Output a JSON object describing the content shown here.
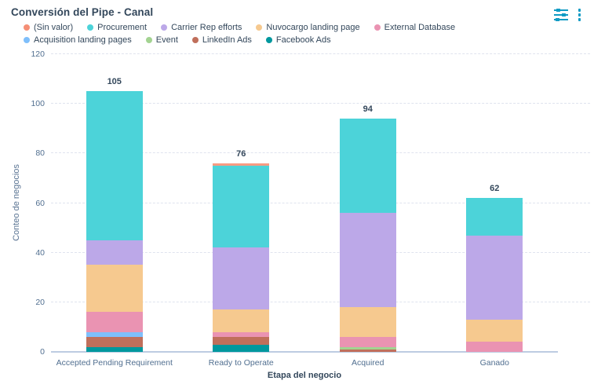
{
  "header": {
    "title": "Conversión del Pipe - Canal"
  },
  "icons": {
    "settings": "chart-settings-sliders",
    "menu": "kebab-menu",
    "accent_color": "#119bc4"
  },
  "legend": [
    {
      "label": "(Sin valor)",
      "color": "#f58f76"
    },
    {
      "label": "Procurement",
      "color": "#4cd3d9"
    },
    {
      "label": "Carrier Rep efforts",
      "color": "#bca8e8"
    },
    {
      "label": "Nuvocargo landing page",
      "color": "#f6c98f"
    },
    {
      "label": "External Database",
      "color": "#ea93b2"
    },
    {
      "label": "Acquisition landing pages",
      "color": "#7fbffb"
    },
    {
      "label": "Event",
      "color": "#a3d391"
    },
    {
      "label": "LinkedIn Ads",
      "color": "#c06f5b"
    },
    {
      "label": "Facebook Ads",
      "color": "#00989e"
    }
  ],
  "chart_data": {
    "type": "bar",
    "stacked": true,
    "title": "Conversión del Pipe - Canal",
    "categories": [
      "Accepted Pending Requirement",
      "Ready to Operate",
      "Acquired",
      "Ganado"
    ],
    "series": [
      {
        "name": "Facebook Ads",
        "color": "#00989e",
        "values": [
          2,
          3,
          0,
          0
        ]
      },
      {
        "name": "LinkedIn Ads",
        "color": "#c06f5b",
        "values": [
          4,
          3,
          1,
          0
        ]
      },
      {
        "name": "Event",
        "color": "#a3d391",
        "values": [
          0,
          0,
          1,
          0
        ]
      },
      {
        "name": "Acquisition landing pages",
        "color": "#7fbffb",
        "values": [
          2,
          0,
          0,
          0
        ]
      },
      {
        "name": "External Database",
        "color": "#ea93b2",
        "values": [
          8,
          2,
          4,
          4
        ]
      },
      {
        "name": "Nuvocargo landing page",
        "color": "#f6c98f",
        "values": [
          19,
          9,
          12,
          9
        ]
      },
      {
        "name": "Carrier Rep efforts",
        "color": "#bca8e8",
        "values": [
          10,
          25,
          38,
          34
        ]
      },
      {
        "name": "Procurement",
        "color": "#4cd3d9",
        "values": [
          60,
          33,
          38,
          15
        ]
      },
      {
        "name": "(Sin valor)",
        "color": "#f89b82",
        "values": [
          0,
          1,
          0,
          0
        ]
      }
    ],
    "totals": [
      105,
      76,
      94,
      62
    ],
    "xlabel": "Etapa del negocio",
    "ylabel": "Conteo de negocios",
    "ylim": [
      0,
      120
    ],
    "yticks": [
      0,
      20,
      40,
      60,
      80,
      100,
      120
    ],
    "grid": "dashed-horizontal",
    "legend_position": "top"
  }
}
